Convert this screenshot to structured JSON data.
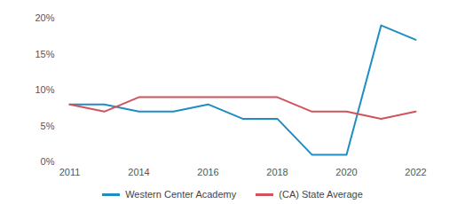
{
  "chart_data": {
    "type": "line",
    "categories": [
      "2011",
      null,
      "2014",
      null,
      "2016",
      null,
      "2018",
      null,
      "2020",
      null,
      "2022"
    ],
    "series": [
      {
        "name": "Western Center Academy",
        "color": "#1f8dc1",
        "values": [
          8,
          8,
          7,
          7,
          8,
          6,
          6,
          1,
          1,
          19,
          17
        ]
      },
      {
        "name": "(CA) State Average",
        "color": "#d0545c",
        "values": [
          8,
          7,
          9,
          9,
          9,
          9,
          9,
          7,
          7,
          6,
          7
        ]
      }
    ],
    "ylim": [
      0,
      20
    ],
    "yticks": [
      {
        "value": 0,
        "label": "0%"
      },
      {
        "value": 5,
        "label": "5%"
      },
      {
        "value": 10,
        "label": "10%"
      },
      {
        "value": 15,
        "label": "15%"
      },
      {
        "value": 20,
        "label": "20%"
      }
    ],
    "grid": false,
    "legend": "bottom"
  }
}
